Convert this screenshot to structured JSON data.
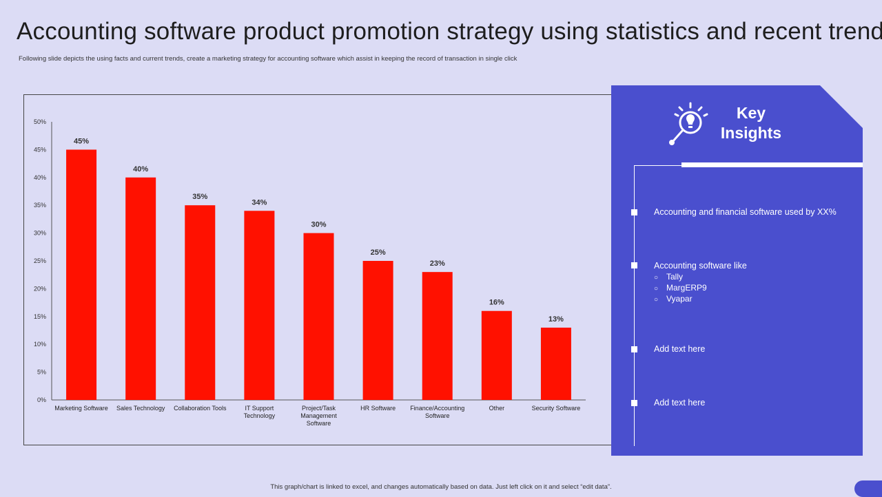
{
  "title": "Accounting software product promotion strategy using statistics and recent trends",
  "subtitle": "Following slide depicts the using facts and current trends, create a marketing strategy for accounting software which assist in keeping the record of transaction in  single click",
  "footer": "This graph/chart is linked to excel, and changes automatically based on data. Just left click on it and select “edit data”.",
  "colors": {
    "bar": "#ff1100",
    "panel": "#4a4fce",
    "background": "#dcdcf5"
  },
  "insights": {
    "heading_line1": "Key",
    "heading_line2": "Insights",
    "icon": "lightbulb-magnifier-icon",
    "items": [
      {
        "text": "Accounting and financial software used by XX%"
      },
      {
        "text": "Accounting software like",
        "sub": [
          "Tally",
          "MargERP9",
          "Vyapar"
        ]
      },
      {
        "text": "Add text here"
      },
      {
        "text": "Add text here"
      }
    ]
  },
  "chart_data": {
    "type": "bar",
    "categories": [
      "Marketing Software",
      "Sales Technology",
      "Collaboration Tools",
      "IT Support Technology",
      "Project/Task Management Software",
      "HR Software",
      "Finance/Accounting Software",
      "Other",
      "Security Software"
    ],
    "category_lines": [
      [
        "Marketing Software"
      ],
      [
        "Sales Technology"
      ],
      [
        "Collaboration Tools"
      ],
      [
        "IT Support",
        "Technology"
      ],
      [
        "Project/Task",
        "Management",
        "Software"
      ],
      [
        "HR Software"
      ],
      [
        "Finance/Accounting",
        "Software"
      ],
      [
        "Other"
      ],
      [
        "Security Software"
      ]
    ],
    "values": [
      45,
      40,
      35,
      34,
      30,
      25,
      23,
      16,
      13
    ],
    "data_labels": [
      "45%",
      "40%",
      "35%",
      "34%",
      "30%",
      "25%",
      "23%",
      "16%",
      "13%"
    ],
    "yticks": [
      "0%",
      "5%",
      "10%",
      "15%",
      "20%",
      "25%",
      "30%",
      "35%",
      "40%",
      "45%",
      "50%"
    ],
    "ylim": [
      0,
      50
    ],
    "title": "",
    "xlabel": "",
    "ylabel": "",
    "grid": false
  }
}
